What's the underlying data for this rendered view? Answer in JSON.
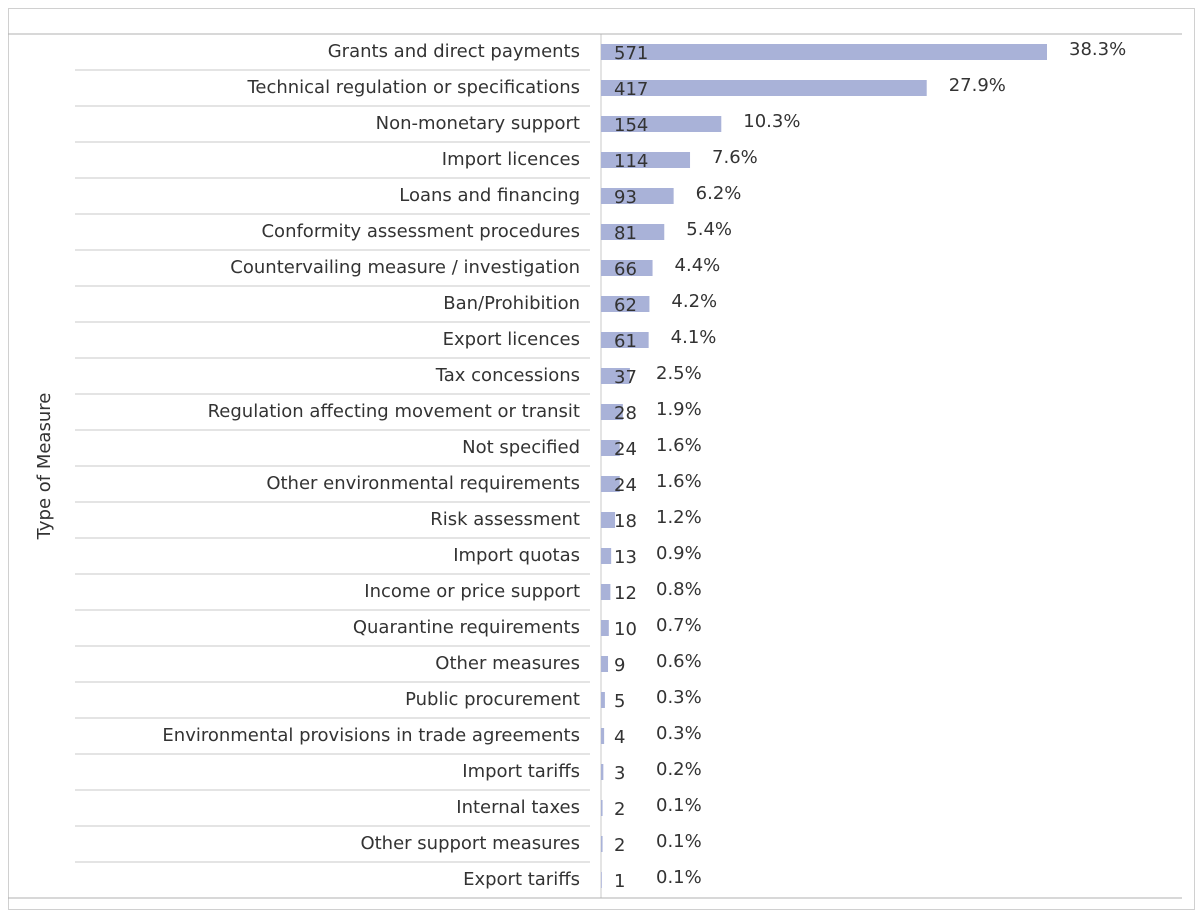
{
  "chart_data": {
    "type": "bar",
    "orientation": "horizontal",
    "y_axis_label": "Type of Measure",
    "color": "#a9b2d8",
    "categories": [
      "Grants and direct payments",
      "Technical regulation or specifications",
      "Non-monetary support",
      "Import licences",
      "Loans and financing",
      "Conformity assessment procedures",
      "Countervailing measure / investigation",
      "Ban/Prohibition",
      "Export licences",
      "Tax concessions",
      "Regulation affecting movement or transit",
      "Not specified",
      "Other environmental requirements",
      "Risk assessment",
      "Import quotas",
      "Income or price support",
      "Quarantine requirements",
      "Other measures",
      "Public procurement",
      "Environmental provisions in trade agreements",
      "Import tariffs",
      "Internal taxes",
      "Other support measures",
      "Export tariffs"
    ],
    "values": [
      571,
      417,
      154,
      114,
      93,
      81,
      66,
      62,
      61,
      37,
      28,
      24,
      24,
      18,
      13,
      12,
      10,
      9,
      5,
      4,
      3,
      2,
      2,
      1
    ],
    "share_labels": [
      "38.3%",
      "27.9%",
      "10.3%",
      "7.6%",
      "6.2%",
      "5.4%",
      "4.4%",
      "4.2%",
      "4.1%",
      "2.5%",
      "1.9%",
      "1.6%",
      "1.6%",
      "1.2%",
      "0.9%",
      "0.8%",
      "0.7%",
      "0.6%",
      "0.3%",
      "0.3%",
      "0.2%",
      "0.1%",
      "0.1%",
      "0.1%"
    ]
  }
}
